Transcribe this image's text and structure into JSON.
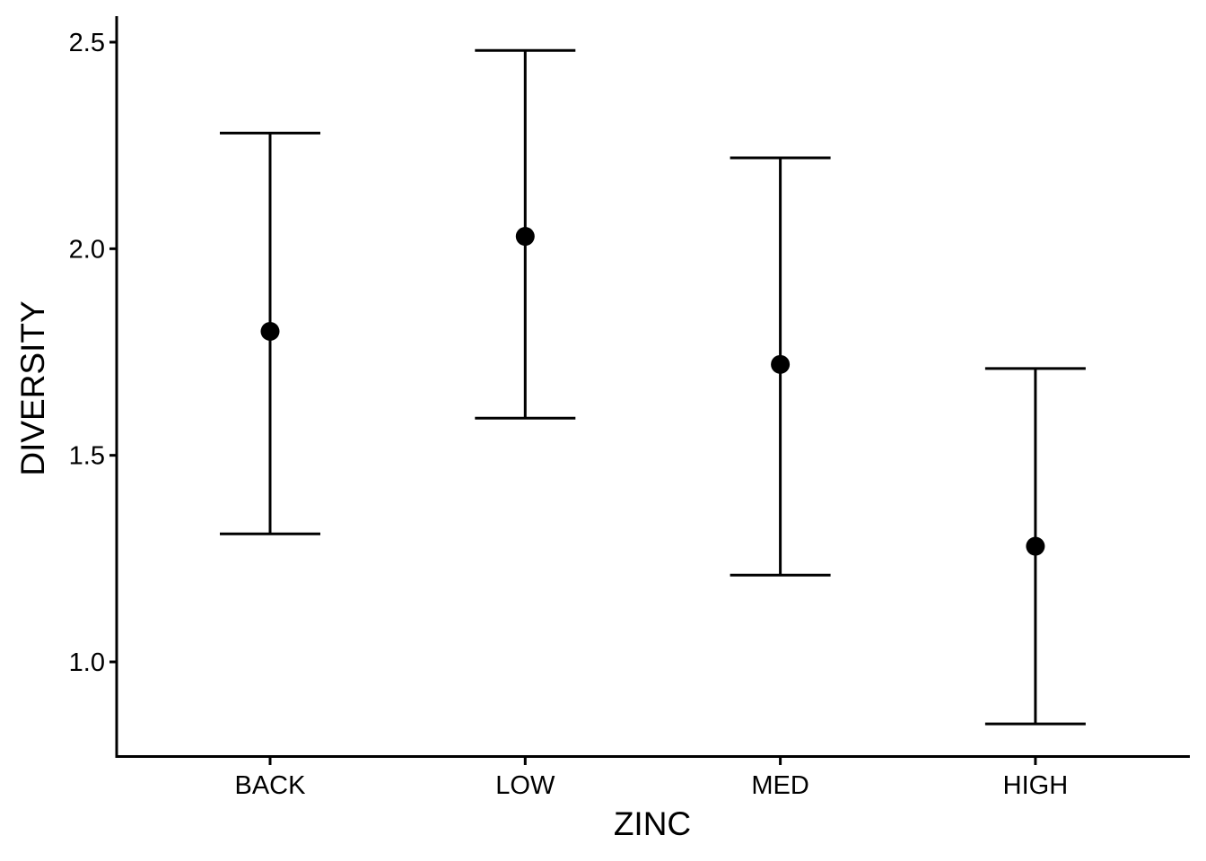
{
  "chart_data": {
    "type": "scatter",
    "subtype": "point-with-error-bars",
    "title": "",
    "xlabel": "ZINC",
    "ylabel": "DIVERSITY",
    "categories": [
      "BACK",
      "LOW",
      "MED",
      "HIGH"
    ],
    "mean": [
      1.8,
      2.03,
      1.72,
      1.28
    ],
    "lower": [
      1.31,
      1.59,
      1.21,
      0.85
    ],
    "upper": [
      2.28,
      2.48,
      2.22,
      1.71
    ],
    "ylim": [
      0.77,
      2.56
    ],
    "yticks": [
      1.0,
      1.5,
      2.0,
      2.5
    ],
    "ytick_labels": [
      "1.0",
      "1.5",
      "2.0",
      "2.5"
    ],
    "grid": false,
    "legend": "none",
    "colors": {
      "point": "#000000",
      "line": "#000000"
    }
  }
}
